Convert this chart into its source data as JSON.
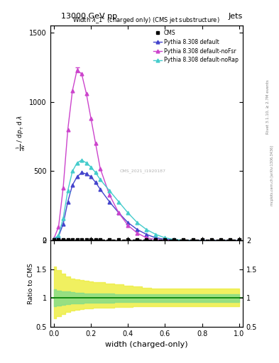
{
  "title_top": "13000 GeV pp",
  "title_right": "Jets",
  "plot_title": "Width $\\lambda\\_1^1$ (charged only) (CMS jet substructure)",
  "xlabel": "width (charged-only)",
  "ylabel_main": "1 / mathrm{d}N / mathrm{d}p_T mathrm{d} lambda",
  "ylabel_ratio": "Ratio to CMS",
  "watermark": "CMS_2021_I1920187",
  "rivet_text": "Rivet 3.1.10, ≥ 2.7M events",
  "inspire_text": "mcplots.cern.ch [arXiv:1306.3436]",
  "xdata": [
    0.0,
    0.025,
    0.05,
    0.075,
    0.1,
    0.125,
    0.15,
    0.175,
    0.2,
    0.225,
    0.25,
    0.3,
    0.35,
    0.4,
    0.45,
    0.5,
    0.55,
    0.6,
    0.65,
    0.7,
    0.75,
    0.8,
    0.85,
    0.9,
    0.95,
    1.0
  ],
  "cms_y": [
    5,
    5,
    5,
    5,
    5,
    5,
    5,
    5,
    5,
    5,
    5,
    5,
    5,
    5,
    5,
    5,
    5,
    5,
    5,
    5,
    5,
    5,
    5,
    5,
    5,
    5
  ],
  "default_y": [
    10,
    30,
    120,
    280,
    400,
    460,
    490,
    480,
    460,
    420,
    370,
    280,
    200,
    130,
    80,
    45,
    20,
    10,
    5,
    2,
    1,
    0.5,
    0.2,
    0.1,
    0.05,
    0.0
  ],
  "nofsr_y": [
    15,
    100,
    380,
    800,
    1080,
    1230,
    1200,
    1060,
    880,
    700,
    520,
    330,
    200,
    110,
    55,
    20,
    8,
    3,
    1,
    0.5,
    0.2,
    0.1,
    0.05,
    0.0,
    0.0,
    0.0
  ],
  "norap_y": [
    10,
    40,
    160,
    360,
    500,
    560,
    580,
    560,
    530,
    490,
    440,
    360,
    280,
    200,
    130,
    80,
    45,
    20,
    8,
    3,
    1,
    0.5,
    0.1,
    0.0,
    0.0,
    0.0
  ],
  "color_default": "#4444cc",
  "color_nofsr": "#cc44cc",
  "color_norap": "#44cccc",
  "color_cms": "#000000",
  "ratio_green_lo": [
    0.85,
    0.87,
    0.88,
    0.89,
    0.9,
    0.91,
    0.91,
    0.92,
    0.92,
    0.92,
    0.92,
    0.92,
    0.93,
    0.93,
    0.93,
    0.93,
    0.93,
    0.93,
    0.93,
    0.93,
    0.93,
    0.93,
    0.93,
    0.93,
    0.93,
    0.93
  ],
  "ratio_green_hi": [
    1.15,
    1.13,
    1.12,
    1.11,
    1.1,
    1.09,
    1.09,
    1.08,
    1.08,
    1.08,
    1.08,
    1.08,
    1.07,
    1.07,
    1.07,
    1.07,
    1.07,
    1.07,
    1.07,
    1.07,
    1.07,
    1.07,
    1.07,
    1.07,
    1.07,
    1.07
  ],
  "ratio_yellow_lo": [
    0.65,
    0.68,
    0.72,
    0.76,
    0.78,
    0.8,
    0.81,
    0.82,
    0.82,
    0.83,
    0.83,
    0.83,
    0.84,
    0.84,
    0.85,
    0.85,
    0.85,
    0.85,
    0.85,
    0.85,
    0.85,
    0.85,
    0.85,
    0.85,
    0.85,
    0.85
  ],
  "ratio_yellow_hi": [
    1.55,
    1.48,
    1.42,
    1.38,
    1.34,
    1.32,
    1.31,
    1.3,
    1.29,
    1.28,
    1.27,
    1.25,
    1.24,
    1.22,
    1.2,
    1.18,
    1.17,
    1.16,
    1.16,
    1.16,
    1.16,
    1.16,
    1.16,
    1.16,
    1.16,
    1.16
  ],
  "ylim_main": [
    0,
    1550
  ],
  "ylim_ratio": [
    0.5,
    2.0
  ],
  "yticks_main": [
    0,
    500,
    1000,
    1500
  ],
  "yticks_ratio": [
    0.5,
    1.0,
    1.5,
    2.0
  ],
  "ytick_ratio_labels": [
    "0.5",
    "1",
    "1.5",
    "2"
  ]
}
